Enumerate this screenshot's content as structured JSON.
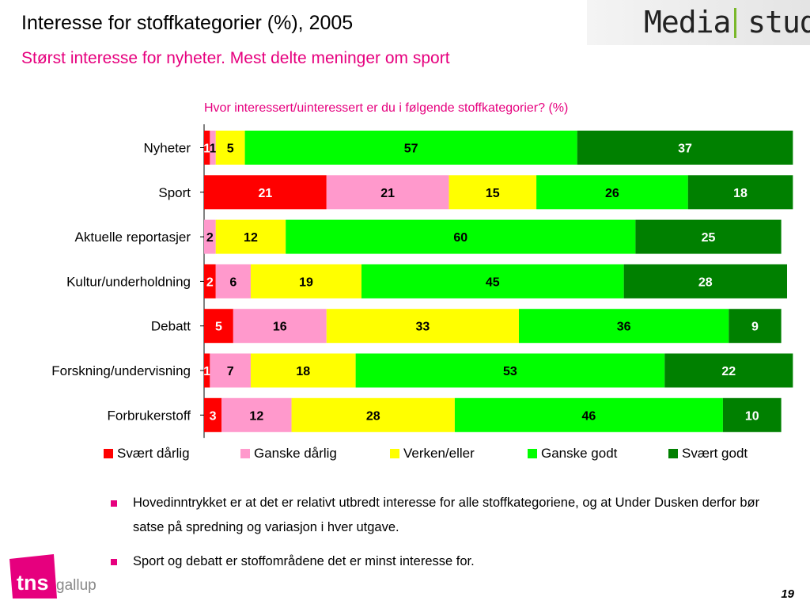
{
  "slide": {
    "title": "Interesse for stoffkategorier (%), 2005",
    "subtitle": "Størst interesse for nyheter. Mest delte meninger om sport",
    "logo_text": "Media stud",
    "page_number": "19",
    "tns_logo": {
      "brand": "tns",
      "sub": "gallup"
    },
    "bullets": [
      "Hovedinntrykket er at det er relativt utbredt interesse for alle stoffkategoriene, og at Under Dusken derfor bør satse på spredning og variasjon i hver utgave.",
      "Sport og debatt er stoffområdene det er minst interesse for."
    ],
    "colors": {
      "accent": "#e6007e",
      "brand_green": "#7ab82a"
    }
  },
  "chart_data": {
    "type": "bar",
    "orientation": "horizontal",
    "stacked": true,
    "title": "Hvor interessert/uinteressert er du i følgende stoffkategorier? (%)",
    "categories": [
      "Nyheter",
      "Sport",
      "Aktuelle reportasjer",
      "Kultur/underholdning",
      "Debatt",
      "Forskning/undervisning",
      "Forbrukerstoff"
    ],
    "series": [
      {
        "name": "Svært dårlig",
        "color": "#ff0000",
        "values": [
          1,
          21,
          0,
          2,
          5,
          1,
          3
        ]
      },
      {
        "name": "Ganske dårlig",
        "color": "#ff99cc",
        "values": [
          1,
          21,
          2,
          6,
          16,
          7,
          12
        ]
      },
      {
        "name": "Verken/eller",
        "color": "#ffff00",
        "values": [
          5,
          15,
          12,
          19,
          33,
          18,
          28
        ]
      },
      {
        "name": "Ganske godt",
        "color": "#00ff00",
        "values": [
          57,
          26,
          60,
          45,
          36,
          53,
          46
        ]
      },
      {
        "name": "Svært godt",
        "color": "#008000",
        "values": [
          37,
          18,
          25,
          28,
          9,
          22,
          10
        ]
      }
    ],
    "xlim": [
      0,
      100
    ],
    "legend": "bottom",
    "grid": false
  }
}
